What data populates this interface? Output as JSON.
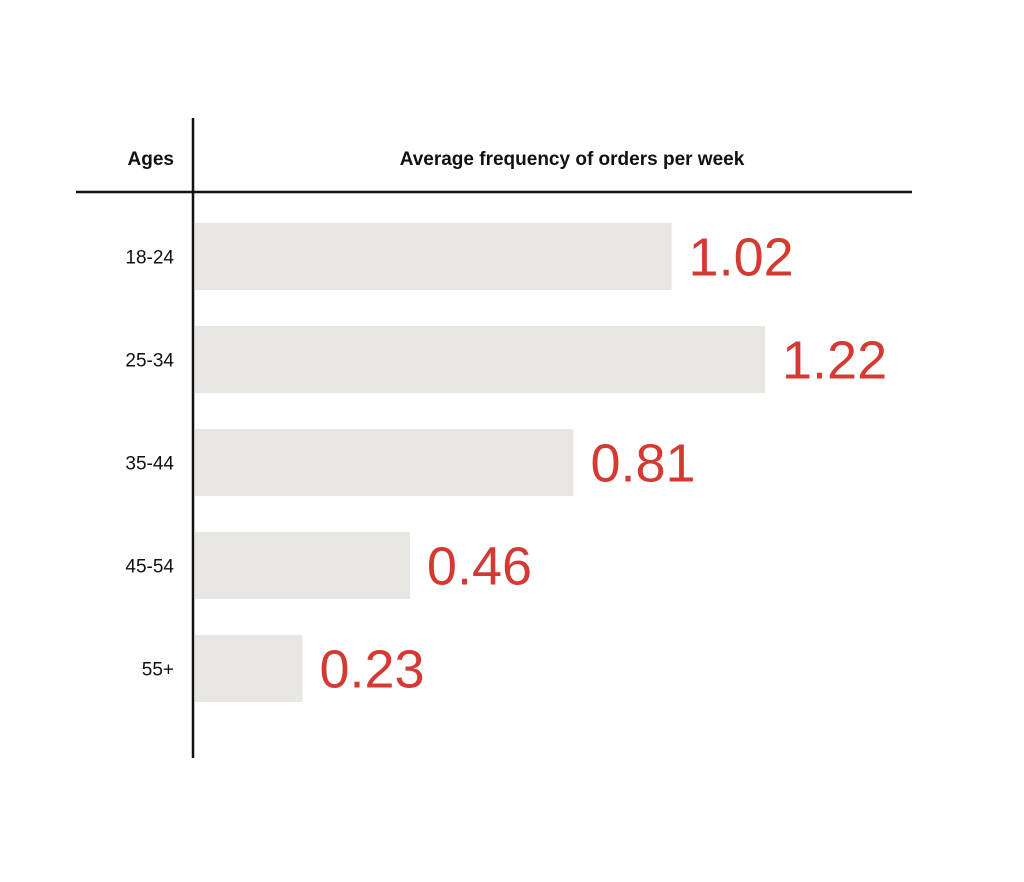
{
  "chart_data": {
    "type": "bar",
    "orientation": "horizontal",
    "category_header": "Ages",
    "value_header": "Average frequency of orders per week",
    "categories": [
      "18-24",
      "25-34",
      "35-44",
      "45-54",
      "55+"
    ],
    "values": [
      1.02,
      1.22,
      0.81,
      0.46,
      0.23
    ],
    "value_labels": [
      "1.02",
      "1.22",
      "0.81",
      "0.46",
      "0.23"
    ],
    "xlim": [
      0,
      1.22
    ],
    "grid": false,
    "legend": "none"
  },
  "colors": {
    "bar": "#e8e6e3",
    "value_label": "#d43a32",
    "text": "#111111",
    "rule": "#111111"
  }
}
